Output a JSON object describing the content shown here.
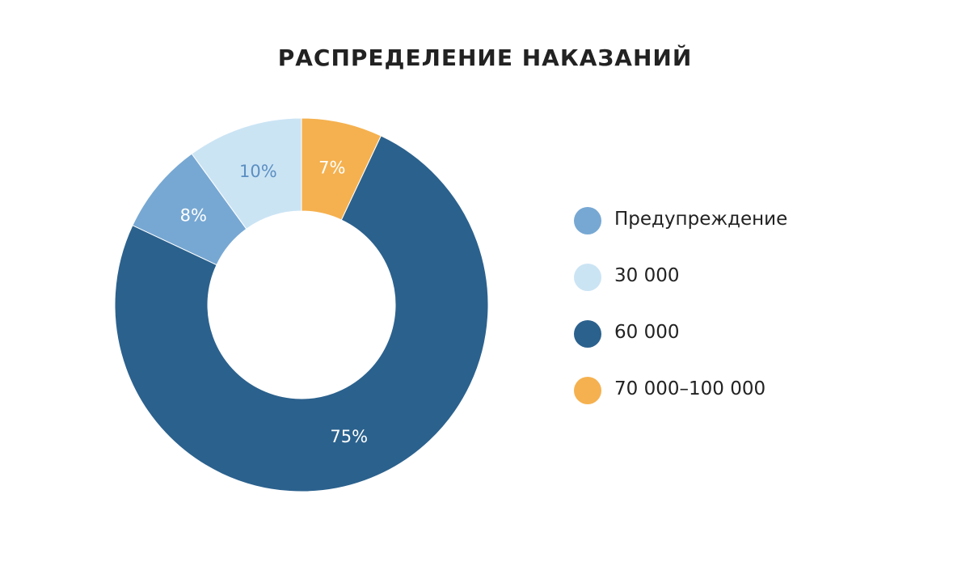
{
  "title": "РАСПРЕДЕЛЕНИЕ НАКАЗАНИЙ",
  "chart_data": {
    "type": "pie",
    "title": "РАСПРЕДЕЛЕНИЕ НАКАЗАНИЙ",
    "donut": true,
    "legend_position": "right",
    "slices": [
      {
        "label": "70 000–100 000",
        "value": 7,
        "display": "7%",
        "color": "#F5B14F",
        "text_color": "#ffffff"
      },
      {
        "label": "60 000",
        "value": 75,
        "display": "75%",
        "color": "#2B618D",
        "text_color": "#ffffff"
      },
      {
        "label": "Предупреждение",
        "value": 8,
        "display": "8%",
        "color": "#77A8D3",
        "text_color": "#ffffff"
      },
      {
        "label": "30 000",
        "value": 10,
        "display": "10%",
        "color": "#CBE4F4",
        "text_color": "#5B8FC2"
      }
    ],
    "legend": [
      {
        "label": "Предупреждение",
        "color": "#77A8D3"
      },
      {
        "label": "30 000",
        "color": "#CBE4F4"
      },
      {
        "label": "60 000",
        "color": "#2B618D"
      },
      {
        "label": "70 000–100 000",
        "color": "#F5B14F"
      }
    ]
  }
}
